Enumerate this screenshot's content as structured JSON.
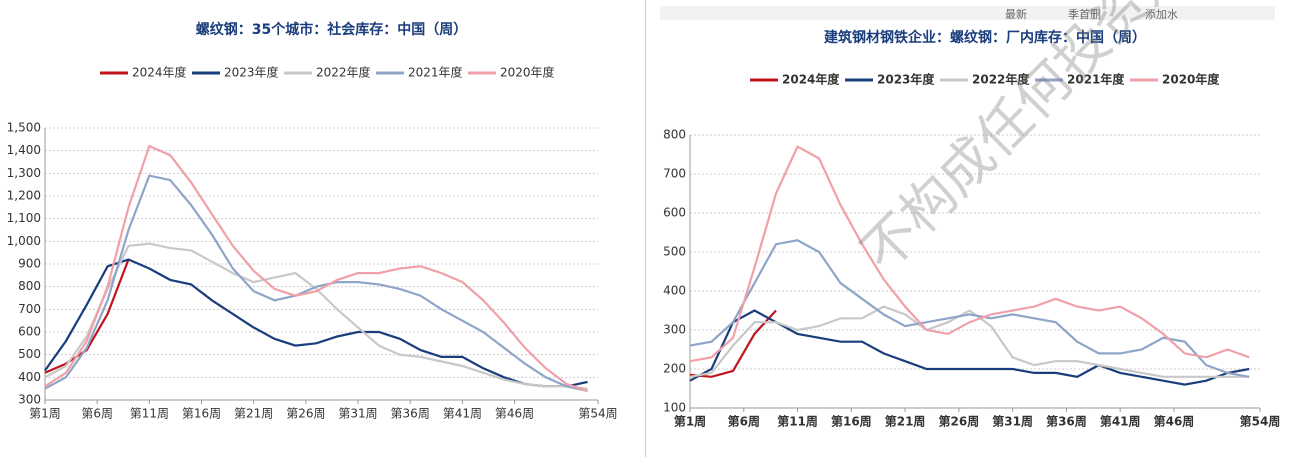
{
  "toolbar": [
    "最新",
    "季首删",
    "添加水"
  ],
  "watermark": "不构成任何投资建议",
  "chart_data": [
    {
      "type": "line",
      "title": "螺纹钢：35个城市：社会库存：中国（周）",
      "grid": true,
      "x": [
        1,
        3,
        5,
        7,
        9,
        11,
        13,
        15,
        17,
        19,
        21,
        23,
        25,
        27,
        29,
        31,
        33,
        35,
        37,
        39,
        41,
        43,
        45,
        47,
        49,
        51,
        53
      ],
      "xlim": [
        1,
        54
      ],
      "ylim": [
        300,
        1500
      ],
      "xticks": [
        {
          "value": 1,
          "label": "第1周"
        },
        {
          "value": 6,
          "label": "第6周"
        },
        {
          "value": 11,
          "label": "第11周"
        },
        {
          "value": 16,
          "label": "第16周"
        },
        {
          "value": 21,
          "label": "第21周"
        },
        {
          "value": 26,
          "label": "第26周"
        },
        {
          "value": 31,
          "label": "第31周"
        },
        {
          "value": 36,
          "label": "第36周"
        },
        {
          "value": 41,
          "label": "第41周"
        },
        {
          "value": 46,
          "label": "第46周"
        },
        {
          "value": 54,
          "label": "第54周"
        }
      ],
      "yticks": [
        300,
        400,
        500,
        600,
        700,
        800,
        900,
        {
          "value": 1000,
          "label": "1,000"
        },
        {
          "value": 1100,
          "label": "1,100"
        },
        {
          "value": 1200,
          "label": "1,200"
        },
        {
          "value": 1300,
          "label": "1,300"
        },
        {
          "value": 1400,
          "label": "1,400"
        },
        {
          "value": 1500,
          "label": "1,500"
        }
      ],
      "series": [
        {
          "name": "2024年度",
          "color": "#c0141e",
          "values": [
            420,
            460,
            520,
            680,
            920,
            null,
            null,
            null,
            null,
            null,
            null,
            null,
            null,
            null,
            null,
            null,
            null,
            null,
            null,
            null,
            null,
            null,
            null,
            null,
            null,
            null,
            null
          ]
        },
        {
          "name": "2023年度",
          "color": "#1a3d7c",
          "values": [
            430,
            560,
            720,
            890,
            920,
            880,
            830,
            810,
            740,
            680,
            620,
            570,
            540,
            550,
            580,
            600,
            600,
            570,
            520,
            490,
            490,
            440,
            400,
            370,
            360,
            360,
            380
          ]
        },
        {
          "name": "2022年度",
          "color": "#c8c8c8",
          "values": [
            400,
            450,
            580,
            790,
            980,
            990,
            970,
            960,
            910,
            860,
            820,
            840,
            860,
            790,
            700,
            620,
            540,
            500,
            490,
            470,
            450,
            420,
            390,
            370,
            360,
            360,
            350
          ]
        },
        {
          "name": "2021年度",
          "color": "#8fa5c8",
          "values": [
            350,
            400,
            530,
            740,
            1050,
            1290,
            1270,
            1160,
            1030,
            880,
            780,
            740,
            760,
            800,
            820,
            820,
            810,
            790,
            760,
            700,
            650,
            600,
            530,
            460,
            400,
            360,
            340
          ]
        },
        {
          "name": "2020年度",
          "color": "#f0a0a8",
          "values": [
            360,
            420,
            560,
            800,
            1150,
            1420,
            1380,
            1260,
            1120,
            980,
            870,
            790,
            760,
            780,
            830,
            860,
            860,
            880,
            890,
            860,
            820,
            740,
            640,
            530,
            440,
            370,
            340
          ]
        }
      ]
    },
    {
      "type": "line",
      "title": "建筑钢材钢铁企业：螺纹钢：厂内库存：中国（周）",
      "grid": true,
      "x": [
        1,
        3,
        5,
        7,
        9,
        11,
        13,
        15,
        17,
        19,
        21,
        23,
        25,
        27,
        29,
        31,
        33,
        35,
        37,
        39,
        41,
        43,
        45,
        47,
        49,
        51,
        53
      ],
      "xlim": [
        1,
        54
      ],
      "ylim": [
        100,
        800
      ],
      "xticks": [
        {
          "value": 1,
          "label": "第1周"
        },
        {
          "value": 6,
          "label": "第6周"
        },
        {
          "value": 11,
          "label": "第11周"
        },
        {
          "value": 16,
          "label": "第16周"
        },
        {
          "value": 21,
          "label": "第21周"
        },
        {
          "value": 26,
          "label": "第26周"
        },
        {
          "value": 31,
          "label": "第31周"
        },
        {
          "value": 36,
          "label": "第36周"
        },
        {
          "value": 41,
          "label": "第41周"
        },
        {
          "value": 46,
          "label": "第46周"
        },
        {
          "value": 54,
          "label": "第54周"
        }
      ],
      "yticks": [
        100,
        200,
        300,
        400,
        500,
        600,
        700,
        800
      ],
      "series": [
        {
          "name": "2024年度",
          "color": "#c0141e",
          "values": [
            185,
            180,
            195,
            290,
            350,
            null,
            null,
            null,
            null,
            null,
            null,
            null,
            null,
            null,
            null,
            null,
            null,
            null,
            null,
            null,
            null,
            null,
            null,
            null,
            null,
            null,
            null
          ]
        },
        {
          "name": "2023年度",
          "color": "#1a3d7c",
          "values": [
            170,
            200,
            320,
            350,
            320,
            290,
            280,
            270,
            270,
            240,
            220,
            200,
            200,
            200,
            200,
            200,
            190,
            190,
            180,
            210,
            190,
            180,
            170,
            160,
            170,
            190,
            200
          ]
        },
        {
          "name": "2022年度",
          "color": "#c8c8c8",
          "values": [
            180,
            190,
            260,
            320,
            320,
            300,
            310,
            330,
            330,
            360,
            340,
            300,
            320,
            350,
            310,
            230,
            210,
            220,
            220,
            210,
            200,
            190,
            180,
            180,
            180,
            180,
            180
          ]
        },
        {
          "name": "2021年度",
          "color": "#8fa5c8",
          "values": [
            260,
            270,
            320,
            420,
            520,
            530,
            500,
            420,
            380,
            340,
            310,
            320,
            330,
            340,
            330,
            340,
            330,
            320,
            270,
            240,
            240,
            250,
            280,
            270,
            210,
            190,
            180
          ]
        },
        {
          "name": "2020年度",
          "color": "#f0a0a8",
          "values": [
            220,
            230,
            280,
            460,
            650,
            770,
            740,
            620,
            520,
            430,
            360,
            300,
            290,
            320,
            340,
            350,
            360,
            380,
            360,
            350,
            360,
            330,
            290,
            240,
            230,
            250,
            230
          ]
        }
      ]
    }
  ]
}
